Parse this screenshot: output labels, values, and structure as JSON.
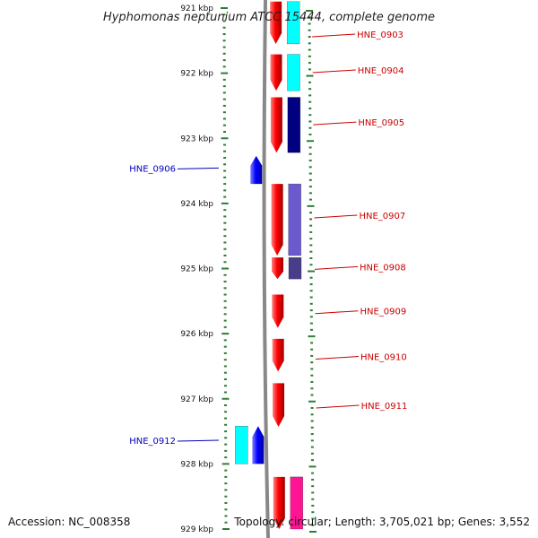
{
  "title": "Hyphomonas neptunium ATCC 15444, complete genome",
  "accession": "Accession: NC_008358",
  "topology": "Topology: circular; Length: 3,705,021 bp; Genes: 3,552",
  "colors": {
    "forward_gene": "#ff0000",
    "reverse_gene": "#0000ff",
    "backbone": "#888888",
    "tick": "#2e7d32",
    "label_forward": "#cc0000",
    "label_reverse": "#0000bb"
  },
  "chart_data": {
    "type": "genome-map",
    "axis_unit": "kbp",
    "range_kbp": [
      920.9,
      929.0
    ],
    "ticks": [
      {
        "pos": 921,
        "label": "921 kbp"
      },
      {
        "pos": 922,
        "label": "922 kbp"
      },
      {
        "pos": 923,
        "label": "923 kbp"
      },
      {
        "pos": 924,
        "label": "924 kbp"
      },
      {
        "pos": 925,
        "label": "925 kbp"
      },
      {
        "pos": 926,
        "label": "926 kbp"
      },
      {
        "pos": 927,
        "label": "927 kbp"
      },
      {
        "pos": 928,
        "label": "928 kbp"
      },
      {
        "pos": 929,
        "label": "929 kbp"
      }
    ],
    "genes": [
      {
        "name": "HNE_0903",
        "start": 920.9,
        "end": 921.55,
        "strand": "+",
        "cog_color": "#00ffff",
        "labeled": true,
        "label_pos": 921.4
      },
      {
        "name": "HNE_0904",
        "start": 921.71,
        "end": 922.27,
        "strand": "+",
        "cog_color": "#00ffff",
        "labeled": true,
        "label_pos": 921.95
      },
      {
        "name": "HNE_0905",
        "start": 922.37,
        "end": 923.22,
        "strand": "+",
        "cog_color": "#000080",
        "labeled": true,
        "label_pos": 922.75
      },
      {
        "name": "HNE_0906",
        "start": 923.27,
        "end": 923.7,
        "strand": "-",
        "cog_color": "",
        "labeled": true,
        "label_pos": 923.47
      },
      {
        "name": "HNE_0907",
        "start": 923.7,
        "end": 924.8,
        "strand": "+",
        "cog_color": "#6a5acd",
        "labeled": true,
        "label_pos": 924.18
      },
      {
        "name": "HNE_0908",
        "start": 924.83,
        "end": 925.16,
        "strand": "+",
        "cog_color": "#483d8b",
        "labeled": true,
        "label_pos": 924.97
      },
      {
        "name": "HNE_0909",
        "start": 925.4,
        "end": 925.91,
        "strand": "+",
        "cog_color": "",
        "labeled": true,
        "label_pos": 925.65
      },
      {
        "name": "HNE_0910",
        "start": 926.08,
        "end": 926.58,
        "strand": "+",
        "cog_color": "",
        "labeled": true,
        "label_pos": 926.35
      },
      {
        "name": "HNE_0911",
        "start": 926.76,
        "end": 927.43,
        "strand": "+",
        "cog_color": "",
        "labeled": true,
        "label_pos": 927.1
      },
      {
        "name": "HNE_0912",
        "start": 927.42,
        "end": 928.0,
        "strand": "-",
        "cog_color": "#00ffff",
        "labeled": true,
        "label_pos": 927.65
      },
      {
        "name": "",
        "start": 928.2,
        "end": 929.0,
        "strand": "+",
        "cog_color": "#ff1493",
        "labeled": false,
        "label_pos": 928.6
      }
    ]
  }
}
